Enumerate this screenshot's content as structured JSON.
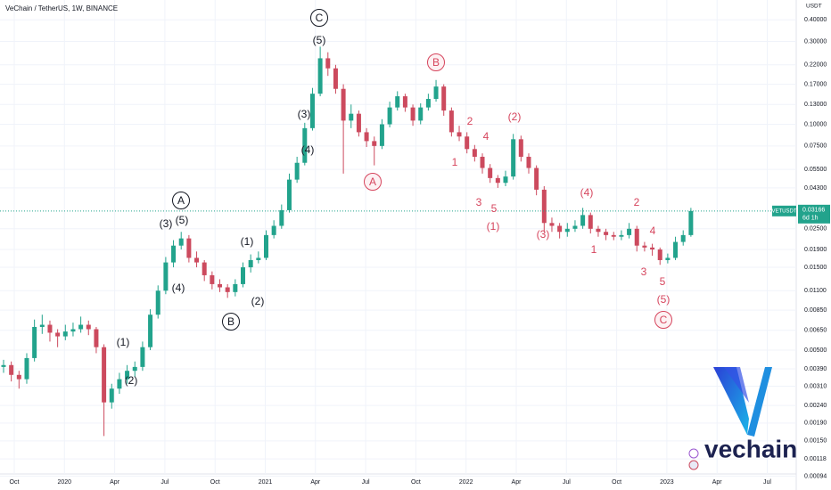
{
  "header": {
    "symbol_line": "VeChain / TetherUS, 1W, BINANCE",
    "axis_unit": "USDT"
  },
  "logo": {
    "text": "vechain"
  },
  "chart_data": {
    "type": "candlestick",
    "log_scale": true,
    "grid": true,
    "up_color": "#22a38c",
    "down_color": "#cc4a5e",
    "ylim": [
      0.00088,
      0.52
    ],
    "yticks": [
      {
        "value": 0.4,
        "label": "0.40000"
      },
      {
        "value": 0.3,
        "label": "0.30000"
      },
      {
        "value": 0.22,
        "label": "0.22000"
      },
      {
        "value": 0.17,
        "label": "0.17000"
      },
      {
        "value": 0.13,
        "label": "0.13000"
      },
      {
        "value": 0.1,
        "label": "0.10000"
      },
      {
        "value": 0.075,
        "label": "0.07500"
      },
      {
        "value": 0.055,
        "label": "0.05500"
      },
      {
        "value": 0.043,
        "label": "0.04300"
      },
      {
        "value": 0.025,
        "label": "0.02500"
      },
      {
        "value": 0.019,
        "label": "0.01900"
      },
      {
        "value": 0.015,
        "label": "0.01500"
      },
      {
        "value": 0.011,
        "label": "0.01100"
      },
      {
        "value": 0.0085,
        "label": "0.00850"
      },
      {
        "value": 0.0065,
        "label": "0.00650"
      },
      {
        "value": 0.005,
        "label": "0.00500"
      },
      {
        "value": 0.0039,
        "label": "0.00390"
      },
      {
        "value": 0.0031,
        "label": "0.00310"
      },
      {
        "value": 0.0024,
        "label": "0.00240"
      },
      {
        "value": 0.0019,
        "label": "0.00190"
      },
      {
        "value": 0.0015,
        "label": "0.00150"
      },
      {
        "value": 0.00118,
        "label": "0.00118"
      },
      {
        "value": 0.00094,
        "label": "0.00094"
      }
    ],
    "xticks": [
      "Oct",
      "2020",
      "Apr",
      "Jul",
      "Oct",
      "2021",
      "Apr",
      "Jul",
      "Oct",
      "2022",
      "Apr",
      "Jul",
      "Oct",
      "2023",
      "Apr",
      "Jul"
    ],
    "price_tag": {
      "symbol": "VETUSDT",
      "countdown": "6d 1h"
    },
    "candles": [
      [
        0.004,
        0.0044,
        0.0037,
        0.0041
      ],
      [
        0.0041,
        0.0043,
        0.0033,
        0.0036
      ],
      [
        0.0036,
        0.0038,
        0.003,
        0.0034
      ],
      [
        0.0034,
        0.0048,
        0.0032,
        0.0045
      ],
      [
        0.0045,
        0.0075,
        0.0043,
        0.0068
      ],
      [
        0.0068,
        0.008,
        0.0062,
        0.007
      ],
      [
        0.007,
        0.0074,
        0.0056,
        0.0063
      ],
      [
        0.0063,
        0.0066,
        0.0052,
        0.006
      ],
      [
        0.006,
        0.007,
        0.0057,
        0.0064
      ],
      [
        0.0064,
        0.0072,
        0.006,
        0.0066
      ],
      [
        0.0066,
        0.0078,
        0.0063,
        0.007
      ],
      [
        0.007,
        0.0074,
        0.0061,
        0.0066
      ],
      [
        0.0066,
        0.0068,
        0.0048,
        0.0052
      ],
      [
        0.0052,
        0.0054,
        0.0016,
        0.0025
      ],
      [
        0.0025,
        0.0032,
        0.0023,
        0.003
      ],
      [
        0.003,
        0.0037,
        0.0028,
        0.0034
      ],
      [
        0.0034,
        0.0041,
        0.0032,
        0.0038
      ],
      [
        0.0038,
        0.0043,
        0.0035,
        0.004
      ],
      [
        0.004,
        0.0056,
        0.0038,
        0.0052
      ],
      [
        0.0052,
        0.0086,
        0.005,
        0.008
      ],
      [
        0.008,
        0.0118,
        0.0076,
        0.011
      ],
      [
        0.011,
        0.0172,
        0.0105,
        0.016
      ],
      [
        0.016,
        0.0215,
        0.015,
        0.02
      ],
      [
        0.02,
        0.024,
        0.019,
        0.022
      ],
      [
        0.022,
        0.023,
        0.016,
        0.017
      ],
      [
        0.017,
        0.0185,
        0.015,
        0.016
      ],
      [
        0.016,
        0.0165,
        0.0125,
        0.0135
      ],
      [
        0.0135,
        0.0142,
        0.0112,
        0.012
      ],
      [
        0.012,
        0.0128,
        0.0108,
        0.0115
      ],
      [
        0.0115,
        0.012,
        0.01,
        0.0108
      ],
      [
        0.0108,
        0.0128,
        0.0102,
        0.012
      ],
      [
        0.012,
        0.016,
        0.0115,
        0.015
      ],
      [
        0.015,
        0.0178,
        0.014,
        0.0165
      ],
      [
        0.0165,
        0.0185,
        0.0158,
        0.017
      ],
      [
        0.017,
        0.0245,
        0.0165,
        0.023
      ],
      [
        0.023,
        0.028,
        0.022,
        0.026
      ],
      [
        0.026,
        0.0345,
        0.025,
        0.032
      ],
      [
        0.032,
        0.052,
        0.031,
        0.048
      ],
      [
        0.048,
        0.065,
        0.046,
        0.06
      ],
      [
        0.06,
        0.102,
        0.058,
        0.095
      ],
      [
        0.095,
        0.162,
        0.092,
        0.15
      ],
      [
        0.15,
        0.28,
        0.145,
        0.24
      ],
      [
        0.24,
        0.26,
        0.19,
        0.21
      ],
      [
        0.21,
        0.22,
        0.15,
        0.16
      ],
      [
        0.16,
        0.17,
        0.052,
        0.105
      ],
      [
        0.105,
        0.13,
        0.095,
        0.115
      ],
      [
        0.115,
        0.12,
        0.085,
        0.09
      ],
      [
        0.09,
        0.095,
        0.074,
        0.08
      ],
      [
        0.08,
        0.085,
        0.058,
        0.075
      ],
      [
        0.075,
        0.107,
        0.072,
        0.1
      ],
      [
        0.1,
        0.135,
        0.096,
        0.125
      ],
      [
        0.125,
        0.155,
        0.12,
        0.145
      ],
      [
        0.145,
        0.15,
        0.118,
        0.125
      ],
      [
        0.125,
        0.13,
        0.098,
        0.105
      ],
      [
        0.105,
        0.132,
        0.1,
        0.125
      ],
      [
        0.125,
        0.15,
        0.12,
        0.14
      ],
      [
        0.14,
        0.18,
        0.135,
        0.165
      ],
      [
        0.165,
        0.17,
        0.112,
        0.12
      ],
      [
        0.12,
        0.125,
        0.085,
        0.09
      ],
      [
        0.09,
        0.098,
        0.08,
        0.085
      ],
      [
        0.085,
        0.09,
        0.068,
        0.072
      ],
      [
        0.072,
        0.076,
        0.061,
        0.065
      ],
      [
        0.065,
        0.068,
        0.052,
        0.056
      ],
      [
        0.056,
        0.059,
        0.046,
        0.049
      ],
      [
        0.049,
        0.051,
        0.043,
        0.046
      ],
      [
        0.046,
        0.054,
        0.044,
        0.05
      ],
      [
        0.05,
        0.088,
        0.048,
        0.082
      ],
      [
        0.082,
        0.086,
        0.061,
        0.065
      ],
      [
        0.065,
        0.068,
        0.052,
        0.056
      ],
      [
        0.056,
        0.058,
        0.039,
        0.042
      ],
      [
        0.042,
        0.044,
        0.024,
        0.027
      ],
      [
        0.027,
        0.029,
        0.024,
        0.026
      ],
      [
        0.026,
        0.027,
        0.022,
        0.024
      ],
      [
        0.024,
        0.027,
        0.0225,
        0.025
      ],
      [
        0.025,
        0.028,
        0.024,
        0.026
      ],
      [
        0.026,
        0.033,
        0.025,
        0.03
      ],
      [
        0.03,
        0.031,
        0.0235,
        0.025
      ],
      [
        0.025,
        0.026,
        0.0225,
        0.024
      ],
      [
        0.024,
        0.025,
        0.0215,
        0.023
      ],
      [
        0.023,
        0.024,
        0.0215,
        0.0225
      ],
      [
        0.0225,
        0.0245,
        0.0215,
        0.023
      ],
      [
        0.023,
        0.027,
        0.022,
        0.025
      ],
      [
        0.025,
        0.026,
        0.0185,
        0.02
      ],
      [
        0.02,
        0.021,
        0.0185,
        0.0195
      ],
      [
        0.0195,
        0.0205,
        0.0175,
        0.019
      ],
      [
        0.019,
        0.0195,
        0.0155,
        0.0165
      ],
      [
        0.0165,
        0.018,
        0.0158,
        0.017
      ],
      [
        0.017,
        0.0225,
        0.0165,
        0.021
      ],
      [
        0.021,
        0.0245,
        0.02,
        0.023
      ],
      [
        0.023,
        0.033,
        0.0225,
        0.03166
      ]
    ],
    "annotations": [
      {
        "text": "C",
        "color": "#131722",
        "circled": true
      },
      {
        "text": "(5)",
        "color": "#131722"
      },
      {
        "text": "(3)",
        "color": "#131722"
      },
      {
        "text": "(4)",
        "color": "#131722"
      },
      {
        "text": "A",
        "color": "#131722",
        "circled": true
      },
      {
        "text": "(3)",
        "color": "#131722"
      },
      {
        "text": "(5)",
        "color": "#131722"
      },
      {
        "text": "(1)",
        "color": "#131722"
      },
      {
        "text": "(4)",
        "color": "#131722"
      },
      {
        "text": "B",
        "color": "#131722",
        "circled": true
      },
      {
        "text": "(2)",
        "color": "#131722"
      },
      {
        "text": "(1)",
        "color": "#131722"
      },
      {
        "text": "(2)",
        "color": "#131722"
      },
      {
        "text": "B",
        "color": "#d6455d",
        "circled": true
      },
      {
        "text": "A",
        "color": "#d6455d",
        "circled": true
      },
      {
        "text": "2",
        "color": "#d6455d"
      },
      {
        "text": "4",
        "color": "#d6455d"
      },
      {
        "text": "1",
        "color": "#d6455d"
      },
      {
        "text": "(2)",
        "color": "#d6455d"
      },
      {
        "text": "3",
        "color": "#d6455d"
      },
      {
        "text": "5",
        "color": "#d6455d"
      },
      {
        "text": "(1)",
        "color": "#d6455d"
      },
      {
        "text": "(4)",
        "color": "#d6455d"
      },
      {
        "text": "(3)",
        "color": "#d6455d"
      },
      {
        "text": "1",
        "color": "#d6455d"
      },
      {
        "text": "2",
        "color": "#d6455d"
      },
      {
        "text": "4",
        "color": "#d6455d"
      },
      {
        "text": "3",
        "color": "#d6455d"
      },
      {
        "text": "5",
        "color": "#d6455d"
      },
      {
        "text": "(5)",
        "color": "#d6455d"
      },
      {
        "text": "C",
        "color": "#d6455d",
        "circled": true
      }
    ]
  }
}
